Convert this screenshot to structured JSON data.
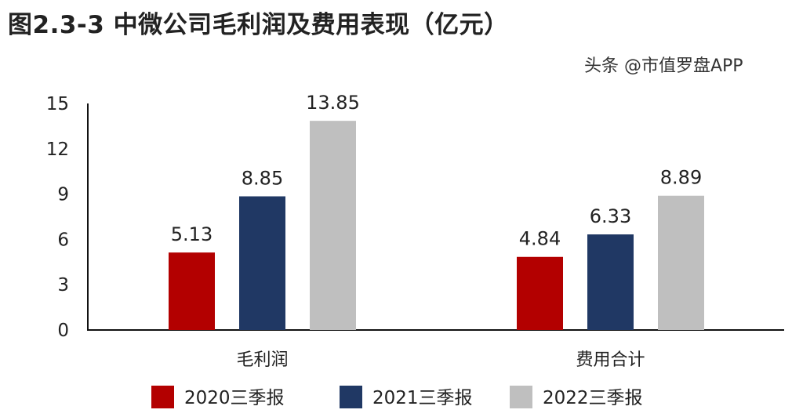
{
  "chart_data": {
    "type": "bar",
    "title": "图2.3-3 中微公司毛利润及费用表现（亿元）",
    "categories": [
      "毛利润",
      "费用合计"
    ],
    "series": [
      {
        "name": "2020三季报",
        "color": "#b30000",
        "values": [
          5.13,
          4.84
        ]
      },
      {
        "name": "2021三季报",
        "color": "#203864",
        "values": [
          8.85,
          6.33
        ]
      },
      {
        "name": "2022三季报",
        "color": "#bfbfbf",
        "values": [
          13.85,
          8.89
        ]
      }
    ],
    "y_ticks": [
      0,
      3,
      6,
      9,
      12,
      15
    ],
    "ylim": [
      0,
      15
    ],
    "xlabel": "",
    "ylabel": "",
    "grid": false,
    "legend": "bottom"
  },
  "watermark": "头条 @市值罗盘APP"
}
